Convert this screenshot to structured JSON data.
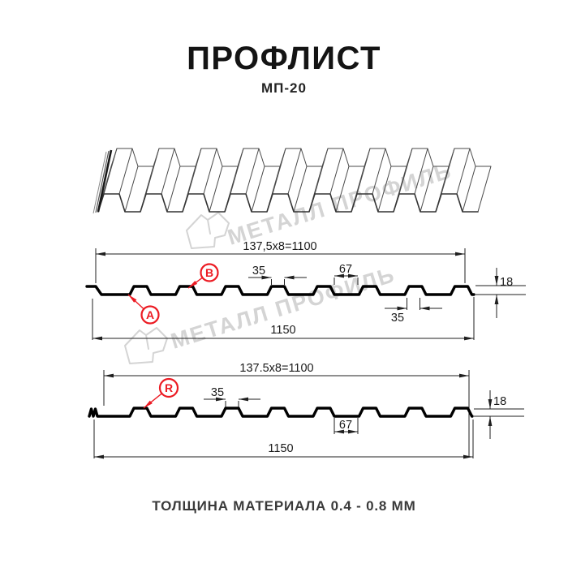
{
  "header": {
    "title": "ПРОФЛИСТ",
    "subtitle": "МП-20"
  },
  "footer": {
    "note": "ТОЛЩИНА МАТЕРИАЛА 0.4 - 0.8 ММ"
  },
  "watermark": {
    "brand": "МЕТАЛЛ ПРОФИЛЬ"
  },
  "colors": {
    "accent_red": "#ec1b23",
    "line": "#1f1f1f",
    "profile": "#000000",
    "watermark": "#d4d4d4",
    "drawing_line": "#4a4a4a"
  },
  "diagram": {
    "sections": [
      {
        "id": "cross-section-side-A",
        "point_labels": [
          "A",
          "B"
        ],
        "dims": {
          "pitch_total": "137,5x8=1100",
          "overall_width": "1150",
          "rib_top_width": "35",
          "rib_bottom_width": "35",
          "flat_width": "67",
          "profile_height": "18"
        }
      },
      {
        "id": "cross-section-side-R",
        "point_labels": [
          "R"
        ],
        "dims": {
          "pitch_total": "137.5x8=1100",
          "overall_width": "1150",
          "rib_top_width": "35",
          "flat_width": "67",
          "profile_height": "18"
        }
      }
    ]
  }
}
